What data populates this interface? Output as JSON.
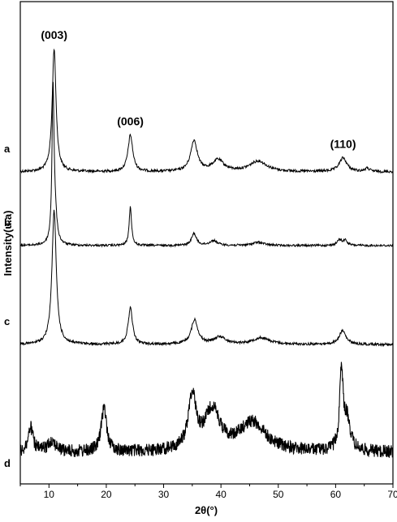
{
  "chart_data": {
    "type": "line",
    "title": "",
    "xlabel": "2θ(°)",
    "ylabel": "Intensity(u.a)",
    "xlim": [
      5,
      70
    ],
    "x_ticks": [
      10,
      20,
      30,
      40,
      50,
      60,
      70
    ],
    "x_tick_labels": [
      "10",
      "20",
      "30",
      "40",
      "50",
      "60",
      "70"
    ],
    "y_tick_labels_shown": false,
    "grid": false,
    "legend": "none",
    "stacked_offset": true,
    "series": [
      {
        "name": "a",
        "baseline": 212,
        "noise": 1.6,
        "peaks": [
          {
            "center": 10.9,
            "height": 152,
            "width": 0.4
          },
          {
            "center": 24.2,
            "height": 45,
            "width": 0.5
          },
          {
            "center": 35.3,
            "height": 38,
            "width": 0.7
          },
          {
            "center": 39.5,
            "height": 14,
            "width": 1.2
          },
          {
            "center": 46.5,
            "height": 13,
            "width": 1.8
          },
          {
            "center": 61.3,
            "height": 17,
            "width": 0.8
          },
          {
            "center": 65.5,
            "height": 4,
            "width": 0.5
          }
        ]
      },
      {
        "name": "b",
        "baseline": 303,
        "noise": 1.3,
        "peaks": [
          {
            "center": 10.7,
            "height": 180,
            "width": 0.2
          },
          {
            "center": 11.0,
            "height": 40,
            "width": 0.4
          },
          {
            "center": 24.2,
            "height": 48,
            "width": 0.25
          },
          {
            "center": 35.3,
            "height": 15,
            "width": 0.5
          },
          {
            "center": 38.7,
            "height": 6,
            "width": 0.8
          },
          {
            "center": 46.5,
            "height": 4,
            "width": 1.2
          },
          {
            "center": 60.7,
            "height": 7,
            "width": 0.5
          },
          {
            "center": 61.7,
            "height": 6,
            "width": 0.4
          }
        ]
      },
      {
        "name": "c",
        "baseline": 425,
        "noise": 1.6,
        "peaks": [
          {
            "center": 10.9,
            "height": 165,
            "width": 0.45
          },
          {
            "center": 24.2,
            "height": 45,
            "width": 0.45
          },
          {
            "center": 35.4,
            "height": 30,
            "width": 0.7
          },
          {
            "center": 39.8,
            "height": 9,
            "width": 1.2
          },
          {
            "center": 47.0,
            "height": 8,
            "width": 1.8
          },
          {
            "center": 61.2,
            "height": 17,
            "width": 0.7
          }
        ]
      },
      {
        "name": "d",
        "baseline": 558,
        "noise": 8,
        "peaks": [
          {
            "center": 6.8,
            "height": 30,
            "width": 0.5
          },
          {
            "center": 10.5,
            "height": 14,
            "width": 0.8
          },
          {
            "center": 19.6,
            "height": 55,
            "width": 0.55
          },
          {
            "center": 35.0,
            "height": 67,
            "width": 0.8
          },
          {
            "center": 38.5,
            "height": 50,
            "width": 1.6
          },
          {
            "center": 45.5,
            "height": 36,
            "width": 2.8
          },
          {
            "center": 61.0,
            "height": 98,
            "width": 0.35
          },
          {
            "center": 62.0,
            "height": 38,
            "width": 0.7
          }
        ]
      }
    ],
    "annotations": [
      {
        "text": "(003)",
        "x": 10.9,
        "series": "a"
      },
      {
        "text": "(006)",
        "x": 24.2,
        "series": "a"
      },
      {
        "text": "(110)",
        "x": 61.3,
        "series": "a"
      }
    ]
  }
}
